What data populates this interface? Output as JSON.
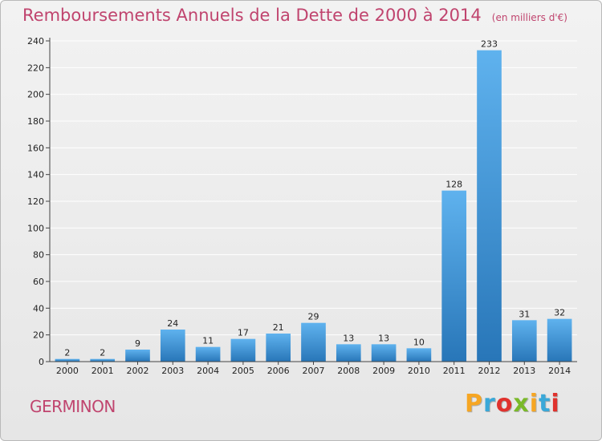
{
  "header": {
    "title": "Remboursements Annuels de la Dette de 2000 à 2014",
    "unit": "(en milliers d'€)"
  },
  "footer": {
    "commune": "GERMINON",
    "brand": "Proxiti",
    "brand_colors": [
      "#f6a623",
      "#3aa8d8",
      "#e0322d",
      "#7ab929",
      "#f6a623",
      "#3aa8d8",
      "#e0322d"
    ]
  },
  "colors": {
    "bar_top": "#5fb2ee",
    "bar_bottom": "#2876b8",
    "axis": "#444444",
    "grid": "#ffffff",
    "title": "#c0446e"
  },
  "chart_data": {
    "type": "bar",
    "categories": [
      "2000",
      "2001",
      "2002",
      "2003",
      "2004",
      "2005",
      "2006",
      "2007",
      "2008",
      "2009",
      "2010",
      "2011",
      "2012",
      "2013",
      "2014"
    ],
    "values": [
      2,
      2,
      9,
      24,
      11,
      17,
      21,
      29,
      13,
      13,
      10,
      128,
      233,
      31,
      32
    ],
    "title": "Remboursements Annuels de la Dette de 2000 à 2014",
    "ylim": [
      0,
      240
    ],
    "yticks": [
      0,
      20,
      40,
      60,
      80,
      100,
      120,
      140,
      160,
      180,
      200,
      220,
      240
    ],
    "grid": true,
    "legend": "none"
  }
}
